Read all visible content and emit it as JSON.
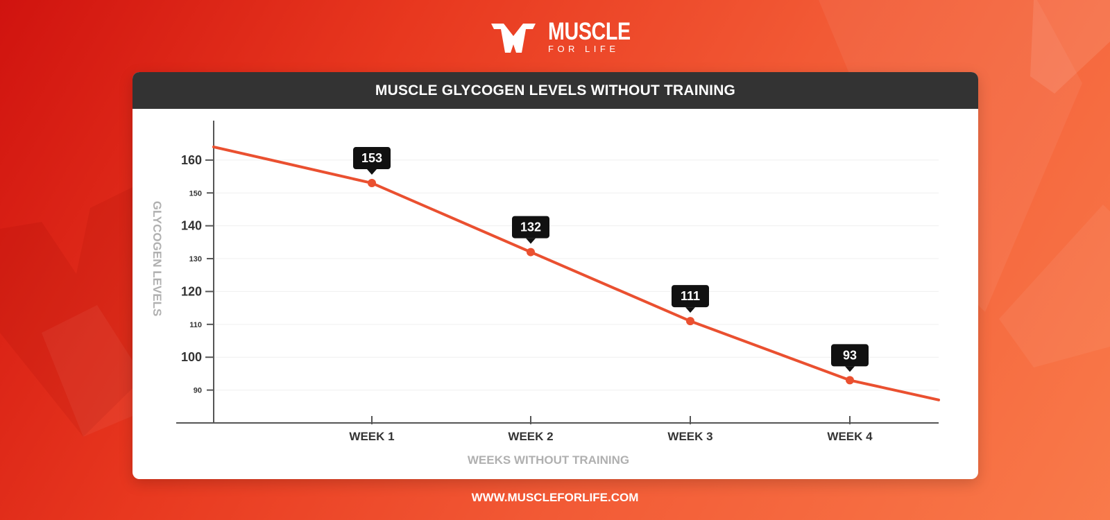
{
  "brand": {
    "name": "MUSCLE",
    "tagline": "FOR LIFE"
  },
  "footer": {
    "url": "WWW.MUSCLEFORLIFE.COM"
  },
  "colors": {
    "line": "#ea5030",
    "header_bg": "#333333",
    "axis": "#555555",
    "label_box": "#111111"
  },
  "chart_data": {
    "type": "line",
    "title": "MUSCLE GLYCOGEN LEVELS WITHOUT TRAINING",
    "xlabel": "WEEKS WITHOUT TRAINING",
    "ylabel": "GLYCOGEN LEVELS",
    "categories": [
      "WEEK 1",
      "WEEK 2",
      "WEEK 3",
      "WEEK 4"
    ],
    "series": [
      {
        "values": [
          153,
          132,
          111,
          93
        ]
      }
    ],
    "data_labels": [
      "153",
      "132",
      "111",
      "93"
    ],
    "line_start_value": 164,
    "line_end_value": 87,
    "ylim": [
      80,
      172
    ],
    "yticks_major": [
      100,
      120,
      140,
      160
    ],
    "yticks_minor": [
      90,
      110,
      130,
      150
    ],
    "grid": "horizontal"
  }
}
